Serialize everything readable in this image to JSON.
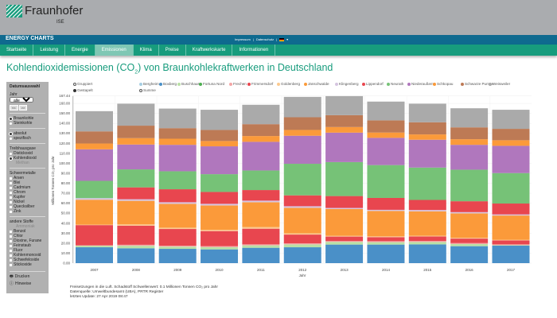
{
  "header": {
    "logo_text": "Fraunhofer",
    "logo_sub": "ISE",
    "brand": "ENERGY CHARTS",
    "links": [
      "Impressum",
      "Datenschutz"
    ],
    "lang_icon": "flag-de-icon"
  },
  "nav": [
    "Startseite",
    "Leistung",
    "Energie",
    "Emissionen",
    "Klima",
    "Preise",
    "Kraftwerkskarte",
    "Informationen"
  ],
  "nav_active": "Emissionen",
  "title": {
    "main": "Kohlendioxidemissionen (CO",
    "sub": "2",
    "rest": ") von Braunkohlekraftwerken in Deutschland"
  },
  "sidebar": {
    "heading": "Datumsauswahl",
    "year_label": "Jahr",
    "year_value": "alle",
    "prev": "<<",
    "next": ">>",
    "fuel": [
      {
        "label": "Braunkohle",
        "on": true
      },
      {
        "label": "Steinkohle",
        "on": false
      }
    ],
    "mode": [
      {
        "label": "absolut",
        "on": true
      },
      {
        "label": "spezifisch",
        "on": false
      }
    ],
    "ghg_title": "Treibhausgase",
    "ghg": [
      {
        "label": "Distickoxid",
        "on": false
      },
      {
        "label": "Kohlendioxid",
        "on": true
      },
      {
        "label": "Methan",
        "disabled": true
      }
    ],
    "metals_title": "Schwermetalle",
    "metals": [
      "Arsen",
      "Blei",
      "Cadmium",
      "Chrom",
      "Kupfer",
      "Nickel",
      "Quecksilber",
      "Zink"
    ],
    "other_title": "andere Stoffe",
    "other_disabled": "Ammoniak",
    "other": [
      "Benzol",
      "Chlor",
      "Dioxine, Furane",
      "Feinstaub",
      "Fluor",
      "Kohlenmonoxid",
      "Schwefeloxide",
      "Stickoxide"
    ],
    "print": "Drucken",
    "notes": "Hinweise"
  },
  "legend_modes": [
    "Gruppiert",
    "Gestapelt",
    "Summe"
  ],
  "chart_data": {
    "type": "bar",
    "stacked": true,
    "xlabel": "Jahr",
    "ylabel": "Millionen Tonnen CO₂ pro Jahr",
    "ylim": [
      0,
      167.44
    ],
    "yticks": [
      "0.00",
      "10.00",
      "20.00",
      "30.00",
      "40.00",
      "50.00",
      "60.00",
      "70.00",
      "80.00",
      "90.00",
      "100.00",
      "110.00",
      "120.00",
      "130.00",
      "140.00",
      "150.00",
      "160.00",
      "167.44"
    ],
    "grid": true,
    "legend_position": "top",
    "categories": [
      "2007",
      "2008",
      "2009",
      "2010",
      "2011",
      "2012",
      "2013",
      "2014",
      "2015",
      "2016",
      "2017"
    ],
    "series": [
      {
        "name": "Bergheim",
        "color": "#a6cee3",
        "values": [
          0,
          0,
          0,
          0,
          0,
          0,
          0,
          0,
          0,
          0,
          0
        ]
      },
      {
        "name": "Boxberg",
        "color": "#4a90c8",
        "values": [
          15.9,
          14.9,
          14.3,
          13.8,
          15.4,
          15.9,
          18.6,
          18.6,
          18.8,
          17.0,
          17.5
        ]
      },
      {
        "name": "Buschhaus",
        "color": "#b9e0a5",
        "values": [
          1.5,
          2.5,
          2.2,
          2.2,
          2.4,
          2.9,
          2.7,
          2.4,
          2.4,
          2.1,
          0.5
        ]
      },
      {
        "name": "Fortuna Nord",
        "color": "#4caf50",
        "values": [
          0,
          0,
          0,
          0,
          0,
          0,
          0,
          0,
          0,
          0,
          0
        ]
      },
      {
        "name": "Frechen",
        "color": "#f4a6a6",
        "values": [
          0.5,
          1.0,
          1.0,
          1.0,
          1.0,
          1.0,
          0.8,
          1.0,
          1.0,
          1.0,
          0.8
        ]
      },
      {
        "name": "Frimmersdorf",
        "color": "#e8464f",
        "values": [
          20.2,
          19.1,
          16.7,
          15.1,
          15.7,
          8.8,
          4.5,
          4.0,
          4.5,
          4.5,
          4.0
        ]
      },
      {
        "name": "Goldenberg",
        "color": "#fbc98f",
        "values": [
          0.5,
          1.3,
          1.3,
          1.3,
          1.6,
          1.3,
          0.8,
          0.8,
          0.8,
          0.8,
          0.5
        ]
      },
      {
        "name": "Jänschwalde",
        "color": "#fb9a3a",
        "values": [
          24.9,
          23.6,
          23.9,
          24.4,
          24.9,
          25.5,
          26.8,
          25.5,
          24.4,
          24.4,
          24.4
        ]
      },
      {
        "name": "Klingenberg",
        "color": "#d5c4e0",
        "values": [
          1.6,
          1.6,
          1.6,
          1.6,
          1.6,
          1.6,
          1.1,
          1.1,
          1.3,
          1.3,
          1.1
        ]
      },
      {
        "name": "Lippendorf",
        "color": "#e8464f",
        "values": [
          0,
          11.9,
          13.0,
          11.9,
          10.6,
          10.9,
          11.9,
          11.9,
          10.1,
          10.9,
          10.9
        ]
      },
      {
        "name": "Neurath",
        "color": "#76c277",
        "values": [
          17.3,
          18.0,
          18.0,
          17.8,
          19.6,
          31.6,
          34.0,
          32.9,
          32.4,
          31.6,
          30.5
        ]
      },
      {
        "name": "Niederaußem",
        "color": "#b077bd",
        "values": [
          31.6,
          24.9,
          26.5,
          27.9,
          28.7,
          28.1,
          29.5,
          27.3,
          27.9,
          24.9,
          27.3
        ]
      },
      {
        "name": "Schkopau",
        "color": "#fb9a3a",
        "values": [
          5.8,
          6.4,
          6.1,
          5.3,
          5.8,
          5.8,
          5.6,
          5.3,
          5.3,
          5.6,
          5.6
        ]
      },
      {
        "name": "Schwarze Pumpe",
        "color": "#bd7a55",
        "values": [
          12.2,
          12.5,
          10.6,
          11.1,
          11.9,
          12.7,
          11.9,
          12.2,
          12.2,
          11.9,
          11.4
        ]
      },
      {
        "name": "Weisweiler",
        "color": "#aaaaaa",
        "values": [
          20.2,
          22.0,
          19.6,
          20.2,
          19.4,
          20.4,
          19.1,
          18.8,
          18.6,
          19.1,
          19.1
        ]
      }
    ]
  },
  "footer": [
    "Freisetzungen in die Luft. Schadstoff Schwellenwert: 0.1 Millionen Tonnen CO₂ pro Jahr",
    "Datenquelle: Umweltbundesamt (UBA), PRTR Register",
    "letztes Update: 27 Apr 2019 08:47"
  ]
}
